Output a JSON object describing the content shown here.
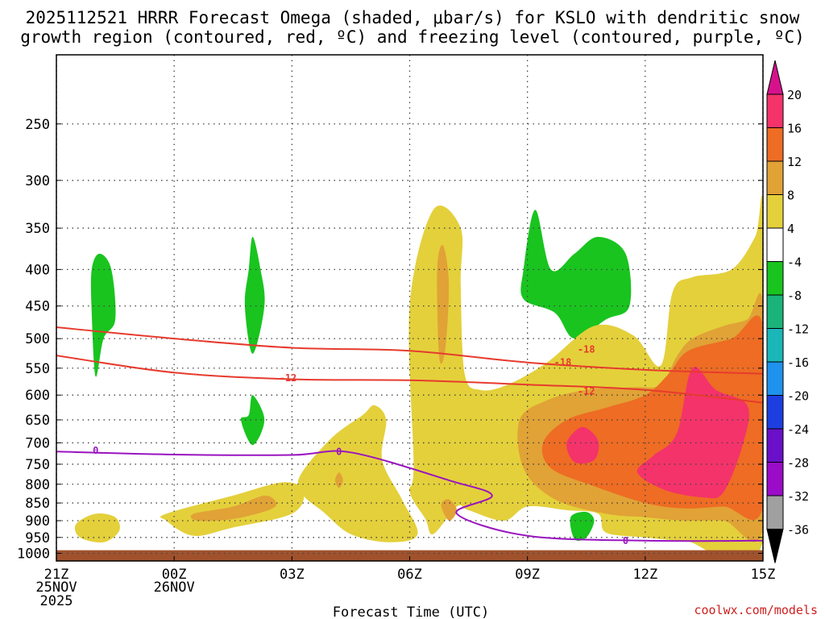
{
  "chart_data": {
    "type": "heatmap",
    "title_line1": "2025112521 HRRR Forecast Omega (shaded, μbar/s) for KSLO with dendritic snow",
    "title_line2": "growth region (contoured, red, ºC) and freezing level (contoured, purple, ºC)",
    "xlabel": "Forecast Time (UTC)",
    "ylabel": "",
    "credit": "coolwx.com/models",
    "x_ticks": [
      {
        "hour": 0,
        "label": "21Z",
        "sub1": "25NOV",
        "sub2": "2025"
      },
      {
        "hour": 3,
        "label": "00Z",
        "sub1": "26NOV",
        "sub2": ""
      },
      {
        "hour": 6,
        "label": "03Z",
        "sub1": "",
        "sub2": ""
      },
      {
        "hour": 9,
        "label": "06Z",
        "sub1": "",
        "sub2": ""
      },
      {
        "hour": 12,
        "label": "09Z",
        "sub1": "",
        "sub2": ""
      },
      {
        "hour": 15,
        "label": "12Z",
        "sub1": "",
        "sub2": ""
      },
      {
        "hour": 18,
        "label": "15Z",
        "sub1": "",
        "sub2": ""
      }
    ],
    "xlim": [
      0,
      18
    ],
    "y_ticks": [
      250,
      300,
      350,
      400,
      450,
      500,
      550,
      600,
      650,
      700,
      750,
      800,
      850,
      900,
      950,
      1000
    ],
    "ylim_hPa": [
      200,
      1025
    ],
    "ground_hPa": 990,
    "colorbar": {
      "labels": [
        "20",
        "16",
        "12",
        "8",
        "4",
        "-4",
        "-8",
        "-12",
        "-16",
        "-20",
        "-24",
        "-28",
        "-32",
        "-36"
      ],
      "colors": [
        "#f4336a",
        "#ee6c24",
        "#e1a236",
        "#e4d03b",
        "#ffffff",
        "#19c41f",
        "#1ab47a",
        "#1bb7b8",
        "#1e92ec",
        "#1d3fe0",
        "#6a10c8",
        "#9a0cc8",
        "#a0a0a0"
      ],
      "top_color": "#d5128c",
      "bottom_color": "#000000"
    },
    "contours": [
      {
        "name": "dgz-minus18",
        "label": "-18",
        "label_hour": 12.9,
        "label_hPa": 540,
        "color": "#e63b2e",
        "points": [
          [
            0,
            482
          ],
          [
            3,
            500
          ],
          [
            6,
            515
          ],
          [
            9,
            520
          ],
          [
            12,
            540
          ],
          [
            15,
            553
          ],
          [
            18,
            560
          ]
        ]
      },
      {
        "name": "dgz-minus12",
        "label": "-12",
        "label_hour": 5.9,
        "label_hPa": 568,
        "color": "#e63b2e",
        "points": [
          [
            0,
            528
          ],
          [
            3,
            558
          ],
          [
            6,
            570
          ],
          [
            9,
            572
          ],
          [
            12,
            580
          ],
          [
            15,
            590
          ],
          [
            18,
            615
          ]
        ]
      },
      {
        "name": "freezing-level",
        "label": "0",
        "label_hour": 1.0,
        "label_hPa": 718,
        "color": "#9a14c0",
        "points": [
          [
            0,
            720
          ],
          [
            3,
            727
          ],
          [
            6,
            728
          ],
          [
            7.5,
            722
          ],
          [
            10,
            790
          ],
          [
            11.1,
            830
          ],
          [
            10.2,
            880
          ],
          [
            12,
            945
          ],
          [
            15,
            960
          ],
          [
            18,
            960
          ]
        ]
      }
    ],
    "contour_extra_labels": [
      {
        "label": "-18",
        "hour": 13.5,
        "hPa": 518,
        "color": "#e63b2e"
      },
      {
        "label": "-12",
        "hour": 13.5,
        "hPa": 593,
        "color": "#e63b2e"
      },
      {
        "label": "0",
        "hour": 7.2,
        "hPa": 720,
        "color": "#9a14c0"
      },
      {
        "label": "0",
        "hour": 14.5,
        "hPa": 960,
        "color": "#9a14c0"
      }
    ],
    "shaded_regions": [
      {
        "name": "omega-green-1",
        "color": "#19c41f",
        "points": [
          [
            0.9,
            400
          ],
          [
            1.1,
            380
          ],
          [
            1.4,
            400
          ],
          [
            1.5,
            470
          ],
          [
            1.2,
            500
          ],
          [
            1.0,
            565
          ],
          [
            0.9,
            460
          ]
        ]
      },
      {
        "name": "omega-green-2",
        "color": "#19c41f",
        "points": [
          [
            4.9,
            400
          ],
          [
            5.0,
            360
          ],
          [
            5.2,
            400
          ],
          [
            5.3,
            450
          ],
          [
            5.0,
            525
          ],
          [
            4.8,
            450
          ]
        ]
      },
      {
        "name": "omega-green-3",
        "color": "#19c41f",
        "points": [
          [
            4.9,
            640
          ],
          [
            5.0,
            600
          ],
          [
            5.3,
            650
          ],
          [
            5.0,
            705
          ],
          [
            4.7,
            650
          ]
        ]
      },
      {
        "name": "omega-green-4",
        "color": "#19c41f",
        "points": [
          [
            11.9,
            400
          ],
          [
            12.2,
            330
          ],
          [
            12.6,
            400
          ],
          [
            13.2,
            380
          ],
          [
            13.8,
            360
          ],
          [
            14.5,
            380
          ],
          [
            14.6,
            450
          ],
          [
            14.0,
            470
          ],
          [
            13.2,
            500
          ],
          [
            12.7,
            460
          ],
          [
            11.9,
            440
          ]
        ]
      },
      {
        "name": "omega-green-5",
        "color": "#19c41f",
        "points": [
          [
            13.1,
            890
          ],
          [
            13.5,
            875
          ],
          [
            13.7,
            900
          ],
          [
            13.5,
            950
          ],
          [
            13.2,
            955
          ]
        ]
      },
      {
        "name": "omega-yellow-1",
        "color": "#e4d03b",
        "points": [
          [
            0.5,
            910
          ],
          [
            1.0,
            880
          ],
          [
            1.5,
            890
          ],
          [
            1.6,
            930
          ],
          [
            1.2,
            965
          ],
          [
            0.6,
            950
          ]
        ]
      },
      {
        "name": "omega-yellow-2",
        "color": "#e4d03b",
        "points": [
          [
            2.8,
            880
          ],
          [
            4.5,
            830
          ],
          [
            5.8,
            795
          ],
          [
            6.3,
            820
          ],
          [
            6.0,
            880
          ],
          [
            4.5,
            920
          ],
          [
            3.5,
            945
          ],
          [
            2.8,
            900
          ]
        ]
      },
      {
        "name": "omega-yellow-3",
        "color": "#e4d03b",
        "points": [
          [
            6.2,
            780
          ],
          [
            7.0,
            690
          ],
          [
            7.8,
            640
          ],
          [
            8.1,
            620
          ],
          [
            8.4,
            650
          ],
          [
            8.3,
            740
          ],
          [
            8.8,
            840
          ],
          [
            9.2,
            940
          ],
          [
            8.5,
            965
          ],
          [
            7.5,
            940
          ],
          [
            6.8,
            875
          ],
          [
            6.3,
            830
          ]
        ]
      },
      {
        "name": "omega-yellow-4",
        "color": "#e4d03b",
        "points": [
          [
            9.0,
            450
          ],
          [
            9.6,
            330
          ],
          [
            10.3,
            350
          ],
          [
            10.3,
            420
          ],
          [
            10.4,
            560
          ],
          [
            10.8,
            590
          ],
          [
            11.5,
            580
          ],
          [
            12.5,
            540
          ],
          [
            13.7,
            480
          ],
          [
            14.7,
            495
          ],
          [
            15.4,
            545
          ],
          [
            15.7,
            430
          ],
          [
            16.2,
            410
          ],
          [
            17.2,
            400
          ],
          [
            17.8,
            360
          ],
          [
            18,
            335
          ],
          [
            18,
            960
          ],
          [
            16,
            960
          ],
          [
            15,
            950
          ],
          [
            14,
            935
          ],
          [
            13.8,
            880
          ],
          [
            13.0,
            870
          ],
          [
            12.0,
            860
          ],
          [
            11.4,
            900
          ],
          [
            10.5,
            870
          ],
          [
            10.2,
            860
          ],
          [
            9.6,
            940
          ],
          [
            9.4,
            895
          ],
          [
            9.0,
            820
          ],
          [
            9.1,
            750
          ]
        ]
      },
      {
        "name": "omega-orange-1",
        "color": "#e1a236",
        "points": [
          [
            3.5,
            880
          ],
          [
            4.5,
            860
          ],
          [
            5.3,
            830
          ],
          [
            5.6,
            850
          ],
          [
            5.4,
            870
          ],
          [
            4.5,
            895
          ],
          [
            3.6,
            900
          ]
        ]
      },
      {
        "name": "omega-orange-2",
        "color": "#e1a236",
        "points": [
          [
            7.1,
            790
          ],
          [
            7.2,
            770
          ],
          [
            7.3,
            790
          ],
          [
            7.2,
            810
          ]
        ]
      },
      {
        "name": "omega-orange-3",
        "color": "#e1a236",
        "points": [
          [
            9.7,
            400
          ],
          [
            9.85,
            370
          ],
          [
            10.0,
            420
          ],
          [
            9.9,
            520
          ],
          [
            9.75,
            530
          ]
        ]
      },
      {
        "name": "omega-orange-4",
        "color": "#e1a236",
        "points": [
          [
            9.8,
            855
          ],
          [
            10.0,
            840
          ],
          [
            10.2,
            870
          ],
          [
            10.0,
            900
          ]
        ]
      },
      {
        "name": "omega-orange-5",
        "color": "#e1a236",
        "points": [
          [
            11.8,
            650
          ],
          [
            12.5,
            610
          ],
          [
            13.5,
            590
          ],
          [
            14.7,
            585
          ],
          [
            15.4,
            580
          ],
          [
            15.8,
            530
          ],
          [
            16.2,
            500
          ],
          [
            17.0,
            480
          ],
          [
            17.6,
            470
          ],
          [
            18,
            450
          ],
          [
            18,
            920
          ],
          [
            17.0,
            900
          ],
          [
            16.0,
            900
          ],
          [
            15.0,
            890
          ],
          [
            14.0,
            880
          ],
          [
            12.7,
            840
          ],
          [
            11.9,
            760
          ]
        ]
      },
      {
        "name": "omega-darkorange-1",
        "color": "#ee6c24",
        "points": [
          [
            12.4,
            700
          ],
          [
            13.0,
            650
          ],
          [
            14.0,
            625
          ],
          [
            15.0,
            600
          ],
          [
            15.6,
            560
          ],
          [
            16.1,
            520
          ],
          [
            17.2,
            500
          ],
          [
            18,
            480
          ],
          [
            18,
            860
          ],
          [
            17.0,
            860
          ],
          [
            16.0,
            865
          ],
          [
            15.0,
            850
          ],
          [
            13.7,
            805
          ],
          [
            12.6,
            760
          ]
        ]
      },
      {
        "name": "omega-red-1",
        "color": "#f4336a",
        "points": [
          [
            16.2,
            550
          ],
          [
            16.8,
            590
          ],
          [
            17.6,
            620
          ],
          [
            17.5,
            700
          ],
          [
            17.0,
            820
          ],
          [
            16.5,
            835
          ],
          [
            15.5,
            815
          ],
          [
            14.8,
            770
          ],
          [
            15.2,
            730
          ],
          [
            15.8,
            680
          ]
        ]
      },
      {
        "name": "omega-red-2",
        "color": "#f4336a",
        "points": [
          [
            13.0,
            700
          ],
          [
            13.4,
            665
          ],
          [
            13.8,
            695
          ],
          [
            13.7,
            740
          ],
          [
            13.2,
            745
          ]
        ]
      }
    ]
  }
}
